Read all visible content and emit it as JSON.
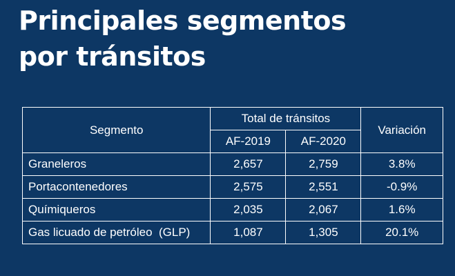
{
  "title": {
    "line1": "Principales segmentos",
    "line2": "por tránsitos"
  },
  "table": {
    "headers": {
      "segment": "Segmento",
      "total": "Total de tránsitos",
      "variation": "Variación",
      "years": [
        "AF-2019",
        "AF-2020"
      ]
    },
    "rows": [
      {
        "segment": "Graneleros",
        "af2019": "2,657",
        "af2020": "2,759",
        "variation": "3.8%"
      },
      {
        "segment": "Portacontenedores",
        "af2019": "2,575",
        "af2020": "2,551",
        "variation": "-0.9%"
      },
      {
        "segment": "Químiqueros",
        "af2019": "2,035",
        "af2020": "2,067",
        "variation": "1.6%"
      },
      {
        "segment": "Gas licuado de petróleo  (GLP)",
        "af2019": "1,087",
        "af2020": "1,305",
        "variation": "20.1%"
      }
    ]
  }
}
